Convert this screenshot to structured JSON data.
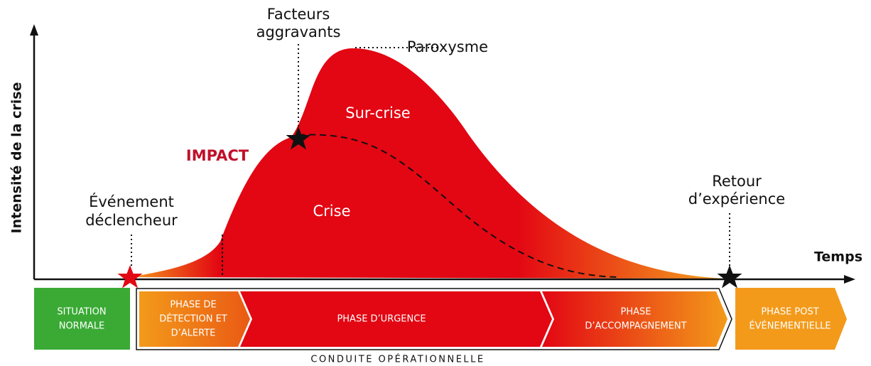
{
  "axes": {
    "y_label": "Intensité de la crise",
    "x_label": "Temps"
  },
  "annotations": {
    "trigger": [
      "Événement",
      "déclencheur"
    ],
    "impact": "IMPACT",
    "aggravating": [
      "Facteurs",
      "aggravants"
    ],
    "paroxysm": "Paroxysme",
    "over_crisis": "Sur-crise",
    "crisis": "Crise",
    "feedback": [
      "Retour",
      "d’expérience"
    ]
  },
  "phases": [
    [
      "SITUATION",
      "NORMALE"
    ],
    [
      "PHASE DE",
      "DÉTECTION ET",
      "D’ALERTE"
    ],
    [
      "PHASE D’URGENCE"
    ],
    [
      "PHASE",
      "D’ACCOMPAGNEMENT"
    ],
    [
      "PHASE POST",
      "ÉVÉNEMENTIELLE"
    ]
  ],
  "operational": "CONDUITE OPÉRATIONNELLE"
}
